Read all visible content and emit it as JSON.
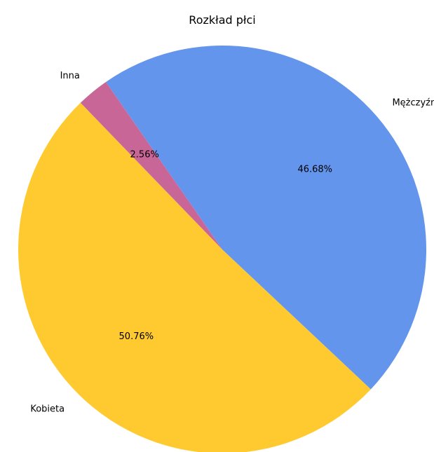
{
  "chart_data": {
    "type": "pie",
    "title": "Rozkład płci",
    "slices": [
      {
        "label": "Kobieta",
        "value": 50.76,
        "pct_label": "50.76%",
        "color": "#FFCA30"
      },
      {
        "label": "Mężczyźna",
        "value": 46.68,
        "pct_label": "46.68%",
        "color": "#6495ED"
      },
      {
        "label": "Inna",
        "value": 2.56,
        "pct_label": "2.56%",
        "color": "#C96698"
      }
    ],
    "start_angle_deg": 134,
    "counterclockwise": true
  }
}
